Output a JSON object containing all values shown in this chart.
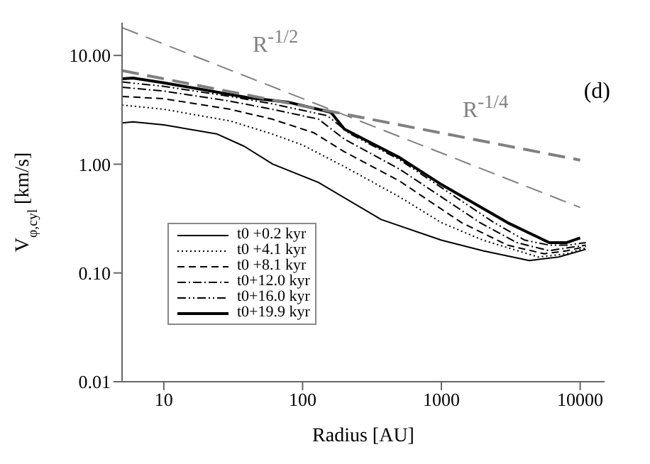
{
  "chart_data": {
    "type": "line",
    "xlabel": "Radius [AU]",
    "ylabel": "V$_{φ,cyl}$ [km/s]",
    "log": "xy",
    "xlim": [
      5,
      15000
    ],
    "ylim": [
      0.01,
      20
    ],
    "xticks": [
      10,
      100,
      1000,
      10000
    ],
    "yticks": [
      {
        "value": 0.01,
        "label": "0.01"
      },
      {
        "value": 0.1,
        "label": "0.10"
      },
      {
        "value": 1,
        "label": "1.00"
      },
      {
        "value": 10,
        "label": "10.00"
      }
    ],
    "legend": "bottom left",
    "marker": "none",
    "annotations": [
      "(d)",
      "R$^{-1/2}$",
      "R$^{-1/4}$"
    ],
    "series": [
      {
        "name": "t0 +0.2 kyr",
        "color": "#000000",
        "line_style": "solid",
        "x": [
          5,
          6,
          10,
          24,
          38,
          61,
          130,
          368,
          1000,
          2000,
          4300,
          7000,
          11000
        ],
        "values": [
          2.4,
          2.45,
          2.3,
          1.9,
          1.46,
          1.0,
          0.68,
          0.31,
          0.2,
          0.16,
          0.13,
          0.14,
          0.165
        ]
      },
      {
        "name": "t0 +4.1 kyr",
        "color": "#000000",
        "line_style": "dotted",
        "x": [
          5,
          10,
          30,
          60,
          100,
          200,
          500,
          1000,
          2000,
          5000,
          8000,
          11000
        ],
        "values": [
          3.5,
          3.2,
          2.5,
          1.9,
          1.5,
          0.95,
          0.5,
          0.29,
          0.2,
          0.14,
          0.15,
          0.17
        ]
      },
      {
        "name": "t0 +8.1 kyr",
        "color": "#000000",
        "line_style": "dashed",
        "x": [
          5,
          10,
          30,
          60,
          120,
          200,
          500,
          1400,
          3000,
          5500,
          8000,
          11000
        ],
        "values": [
          4.2,
          4.0,
          3.2,
          2.6,
          1.95,
          1.3,
          0.7,
          0.29,
          0.18,
          0.15,
          0.16,
          0.175
        ]
      },
      {
        "name": "t0+12.0 kyr",
        "color": "#000000",
        "line_style": "dashdot",
        "x": [
          5,
          10,
          30,
          60,
          130,
          200,
          500,
          1900,
          3500,
          6000,
          8000,
          11000
        ],
        "values": [
          5.1,
          4.7,
          3.8,
          3.2,
          2.6,
          1.7,
          0.9,
          0.29,
          0.19,
          0.16,
          0.17,
          0.18
        ]
      },
      {
        "name": "t0+16.0 kyr",
        "color": "#000000",
        "line_style": "dashdotdot",
        "x": [
          5,
          10,
          30,
          60,
          150,
          220,
          500,
          2400,
          4000,
          6000,
          8000,
          11000
        ],
        "values": [
          5.7,
          5.2,
          4.2,
          3.6,
          2.8,
          1.9,
          1.1,
          0.29,
          0.2,
          0.18,
          0.18,
          0.19
        ]
      },
      {
        "name": "t0+19.9 kyr",
        "color": "#000000",
        "line_style": "solid",
        "x": [
          5,
          6,
          10,
          20,
          40,
          80,
          160,
          200,
          500,
          1000,
          3000,
          6000,
          8000,
          10000
        ],
        "values": [
          6.1,
          6.2,
          5.6,
          4.8,
          4.1,
          3.7,
          3.0,
          2.1,
          1.15,
          0.65,
          0.29,
          0.19,
          0.19,
          0.21
        ]
      },
      {
        "color": "#808080",
        "line_style": "longdash",
        "x": [
          5,
          10000
        ],
        "values": [
          18,
          0.4
        ]
      },
      {
        "color": "#808080",
        "line_style": "longdash",
        "x": [
          5,
          10000
        ],
        "values": [
          7.25,
          1.09
        ]
      }
    ]
  }
}
